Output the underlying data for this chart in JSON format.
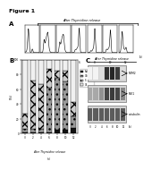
{
  "title": "Figure 1",
  "after_thymidine_release": "After Thymidine release",
  "timepoints_A": [
    "(-)",
    "2",
    "4",
    "6",
    "8",
    "10",
    "12",
    "(h)"
  ],
  "timepoints_B": [
    "(-)",
    "2",
    "4",
    "6",
    "8",
    "10",
    "12"
  ],
  "bar_categories": [
    "Sub-G1",
    "G2/M",
    "S",
    "G1"
  ],
  "stacked_data": {
    "Sub-G1": [
      2,
      2,
      2,
      2,
      5,
      5,
      8
    ],
    "G2/M": [
      5,
      5,
      5,
      60,
      70,
      65,
      15
    ],
    "S": [
      20,
      65,
      60,
      25,
      10,
      15,
      20
    ],
    "G1": [
      73,
      28,
      33,
      13,
      15,
      15,
      57
    ]
  },
  "ylabel_B": "(%)",
  "wb_labels": [
    "MPM2",
    "PLK1",
    "α-tubulin"
  ],
  "wb_intensities": {
    "MPM2": [
      0.05,
      0.05,
      0.15,
      0.95,
      1.0,
      0.9,
      0.15
    ],
    "PLK1": [
      0.4,
      0.4,
      0.5,
      0.85,
      0.9,
      0.85,
      0.55
    ],
    "α-tubulin": [
      0.75,
      0.75,
      0.75,
      0.75,
      0.75,
      0.75,
      0.75
    ]
  },
  "timepoints_C": [
    "(-)",
    "2",
    "4",
    "6",
    "8",
    "10",
    "12"
  ],
  "background_color": "#ffffff"
}
